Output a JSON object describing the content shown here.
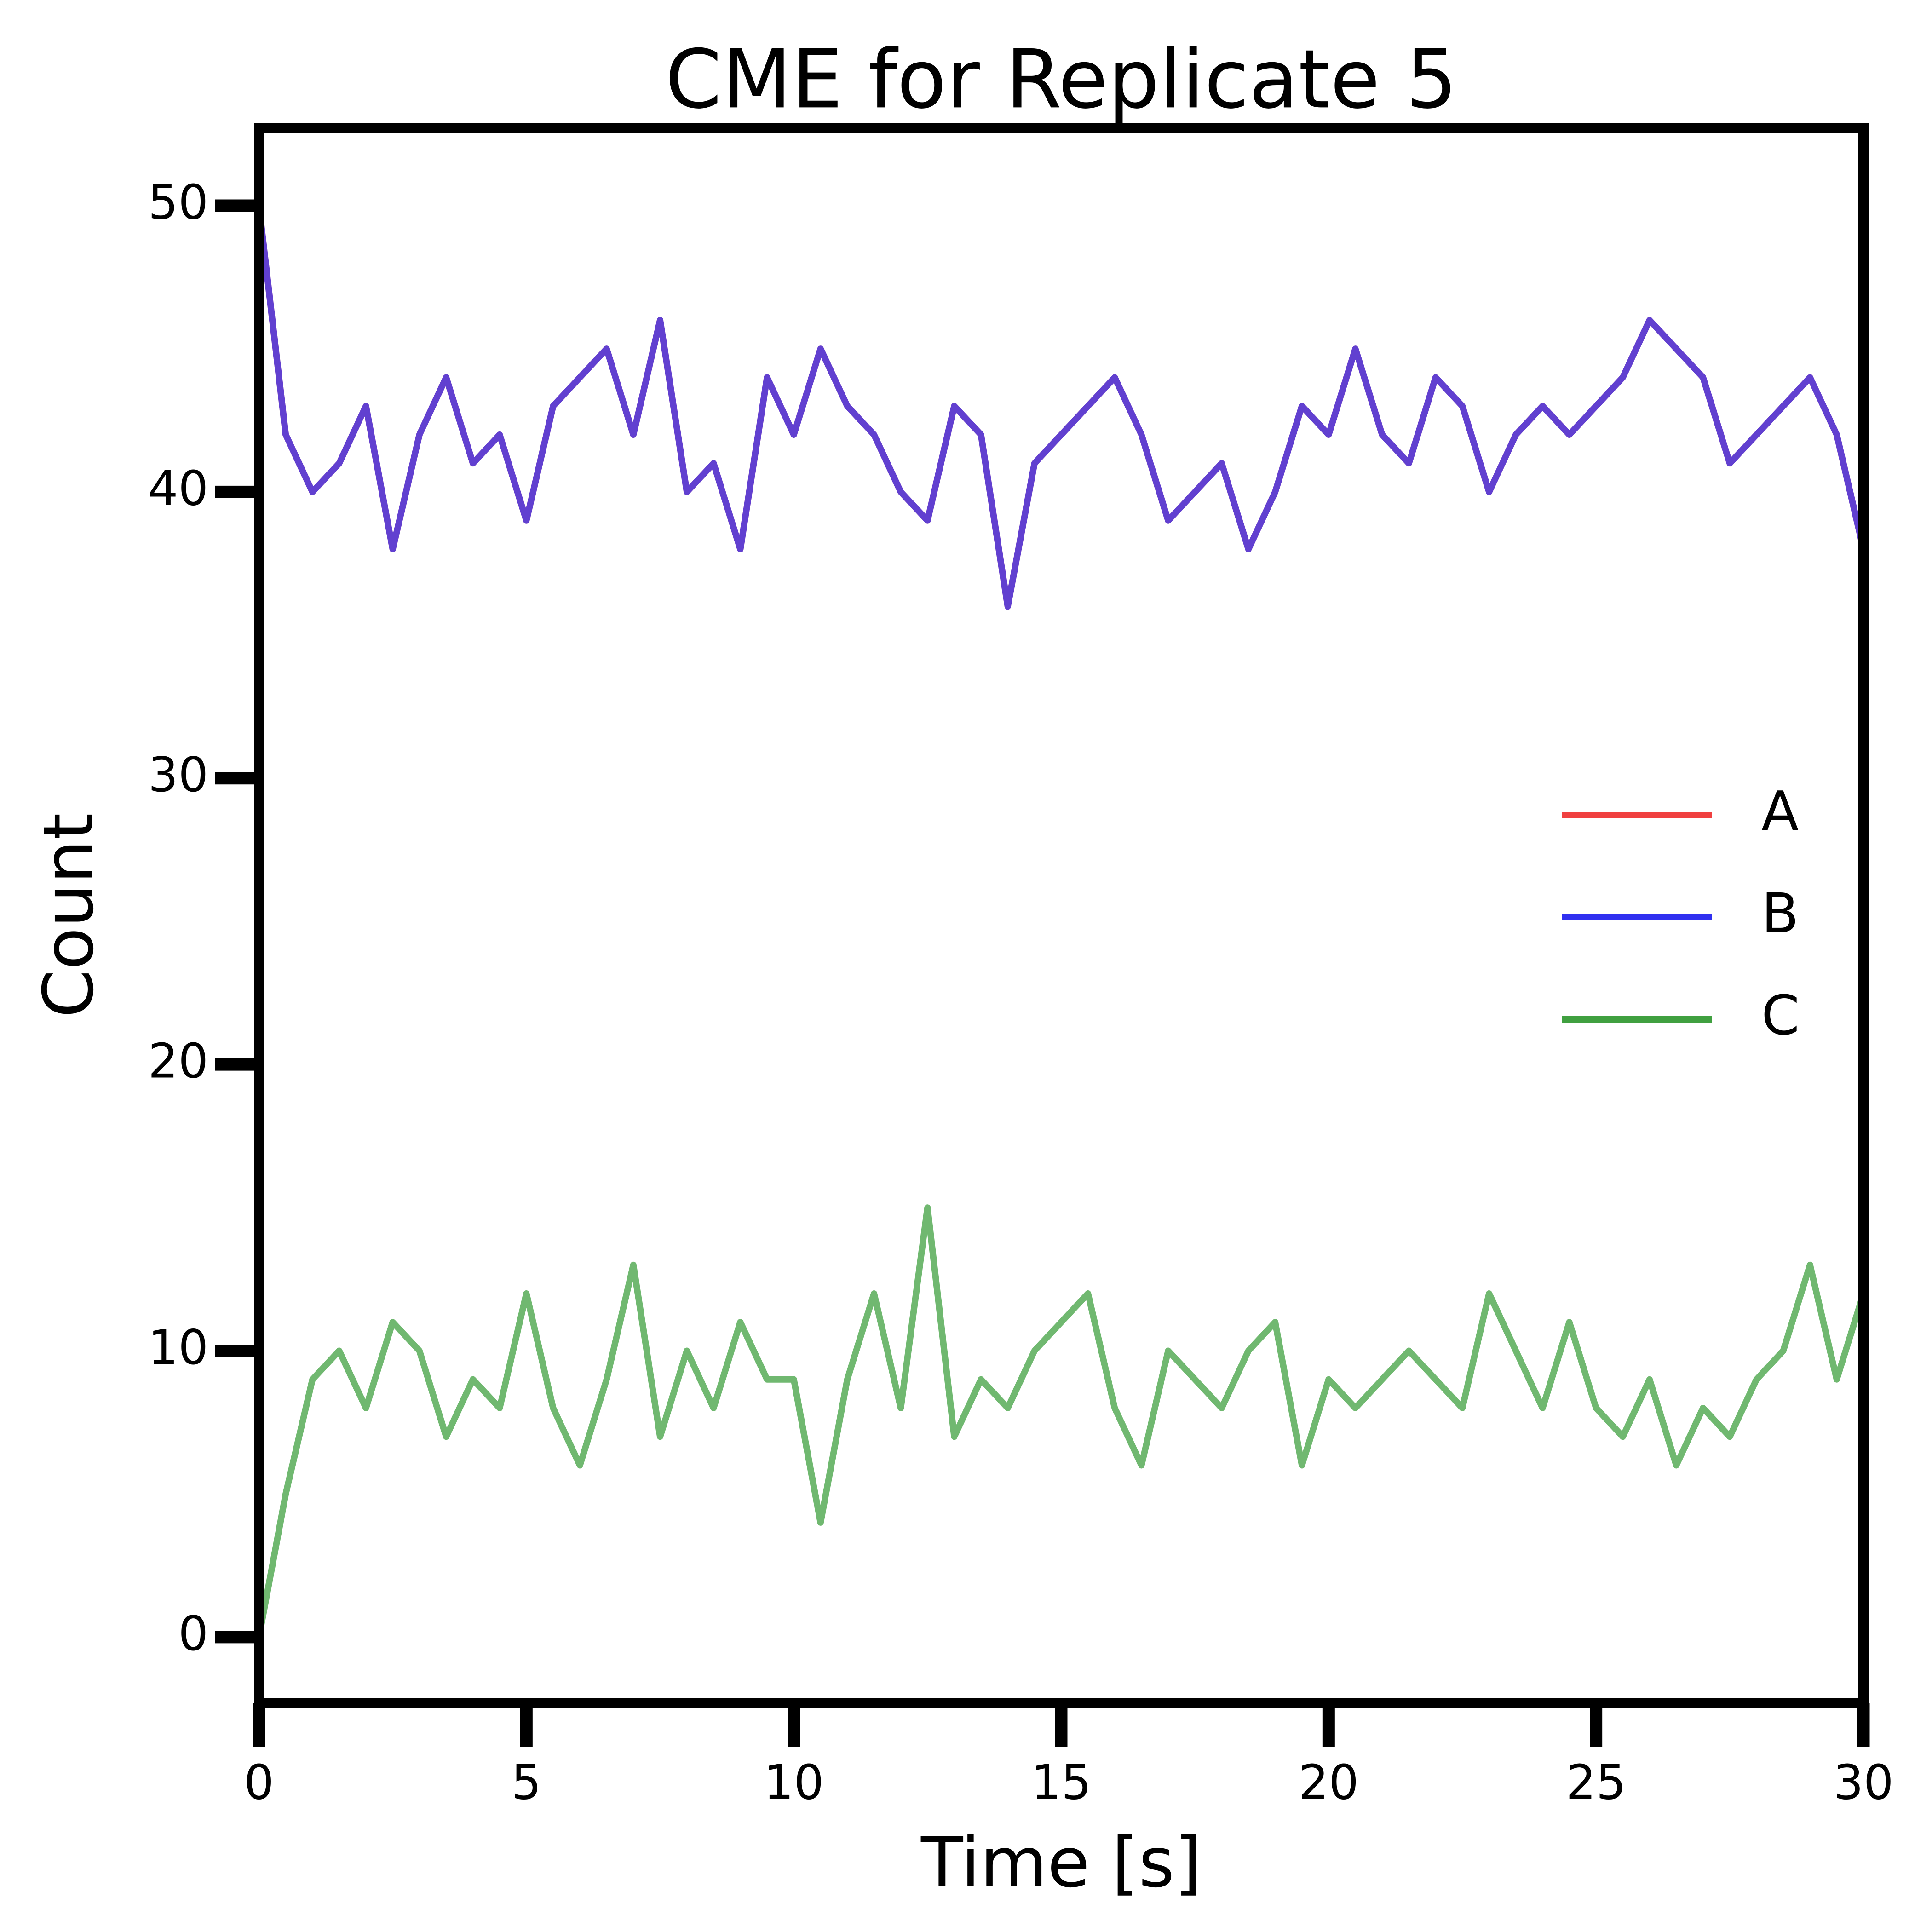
{
  "chart_data": {
    "type": "line",
    "title": "CME for Replicate 5",
    "x_label": "Time [s]",
    "y_label": "Count",
    "x": [
      0,
      0.5,
      1,
      1.5,
      2,
      2.5,
      3,
      3.5,
      4,
      4.5,
      5,
      5.5,
      6,
      6.5,
      7,
      7.5,
      8,
      8.5,
      9,
      9.5,
      10,
      10.5,
      11,
      11.5,
      12,
      12.5,
      13,
      13.5,
      14,
      14.5,
      15,
      15.5,
      16,
      16.5,
      17,
      17.5,
      18,
      18.5,
      19,
      19.5,
      20,
      20.5,
      21,
      21.5,
      22,
      22.5,
      23,
      23.5,
      24,
      24.5,
      25,
      25.5,
      26,
      26.5,
      27,
      27.5,
      28,
      28.5,
      29,
      29.5,
      30
    ],
    "series": [
      {
        "name": "A",
        "color": "#f04040",
        "values": [
          50,
          42,
          40,
          41,
          43,
          38,
          42,
          44,
          41,
          42,
          39,
          43,
          44,
          45,
          42,
          46,
          40,
          41,
          38,
          44,
          42,
          45,
          43,
          42,
          40,
          39,
          43,
          42,
          36,
          41,
          42,
          43,
          44,
          42,
          39,
          40,
          41,
          38,
          40,
          43,
          42,
          45,
          42,
          41,
          44,
          43,
          40,
          42,
          43,
          42,
          43,
          44,
          46,
          45,
          44,
          41,
          42,
          43,
          44,
          42,
          38
        ]
      },
      {
        "name": "B",
        "color": "#3030f0",
        "values": [
          50,
          42,
          40,
          41,
          43,
          38,
          42,
          44,
          41,
          42,
          39,
          43,
          44,
          45,
          42,
          46,
          40,
          41,
          38,
          44,
          42,
          45,
          43,
          42,
          40,
          39,
          43,
          42,
          36,
          41,
          42,
          43,
          44,
          42,
          39,
          40,
          41,
          38,
          40,
          43,
          42,
          45,
          42,
          41,
          44,
          43,
          40,
          42,
          43,
          42,
          43,
          44,
          46,
          45,
          44,
          41,
          42,
          43,
          44,
          42,
          38
        ]
      },
      {
        "name": "C",
        "color": "#40a040",
        "values": [
          0,
          5,
          9,
          10,
          8,
          11,
          10,
          7,
          9,
          8,
          12,
          8,
          6,
          9,
          13,
          7,
          10,
          8,
          11,
          9,
          9,
          4,
          9,
          12,
          8,
          15,
          7,
          9,
          8,
          10,
          11,
          12,
          8,
          6,
          10,
          9,
          8,
          10,
          11,
          6,
          9,
          8,
          9,
          10,
          9,
          8,
          12,
          10,
          8,
          11,
          8,
          7,
          9,
          6,
          8,
          7,
          9,
          10,
          13,
          9,
          12
        ]
      }
    ],
    "alpha": 0.75,
    "xlim": [
      0,
      30
    ],
    "xticks": [
      0,
      5,
      10,
      15,
      20,
      25,
      30
    ],
    "ylim": [
      -2.3,
      52.7
    ],
    "yticks": [
      0,
      10,
      20,
      30,
      40,
      50
    ],
    "grid": false,
    "legend": "right"
  }
}
